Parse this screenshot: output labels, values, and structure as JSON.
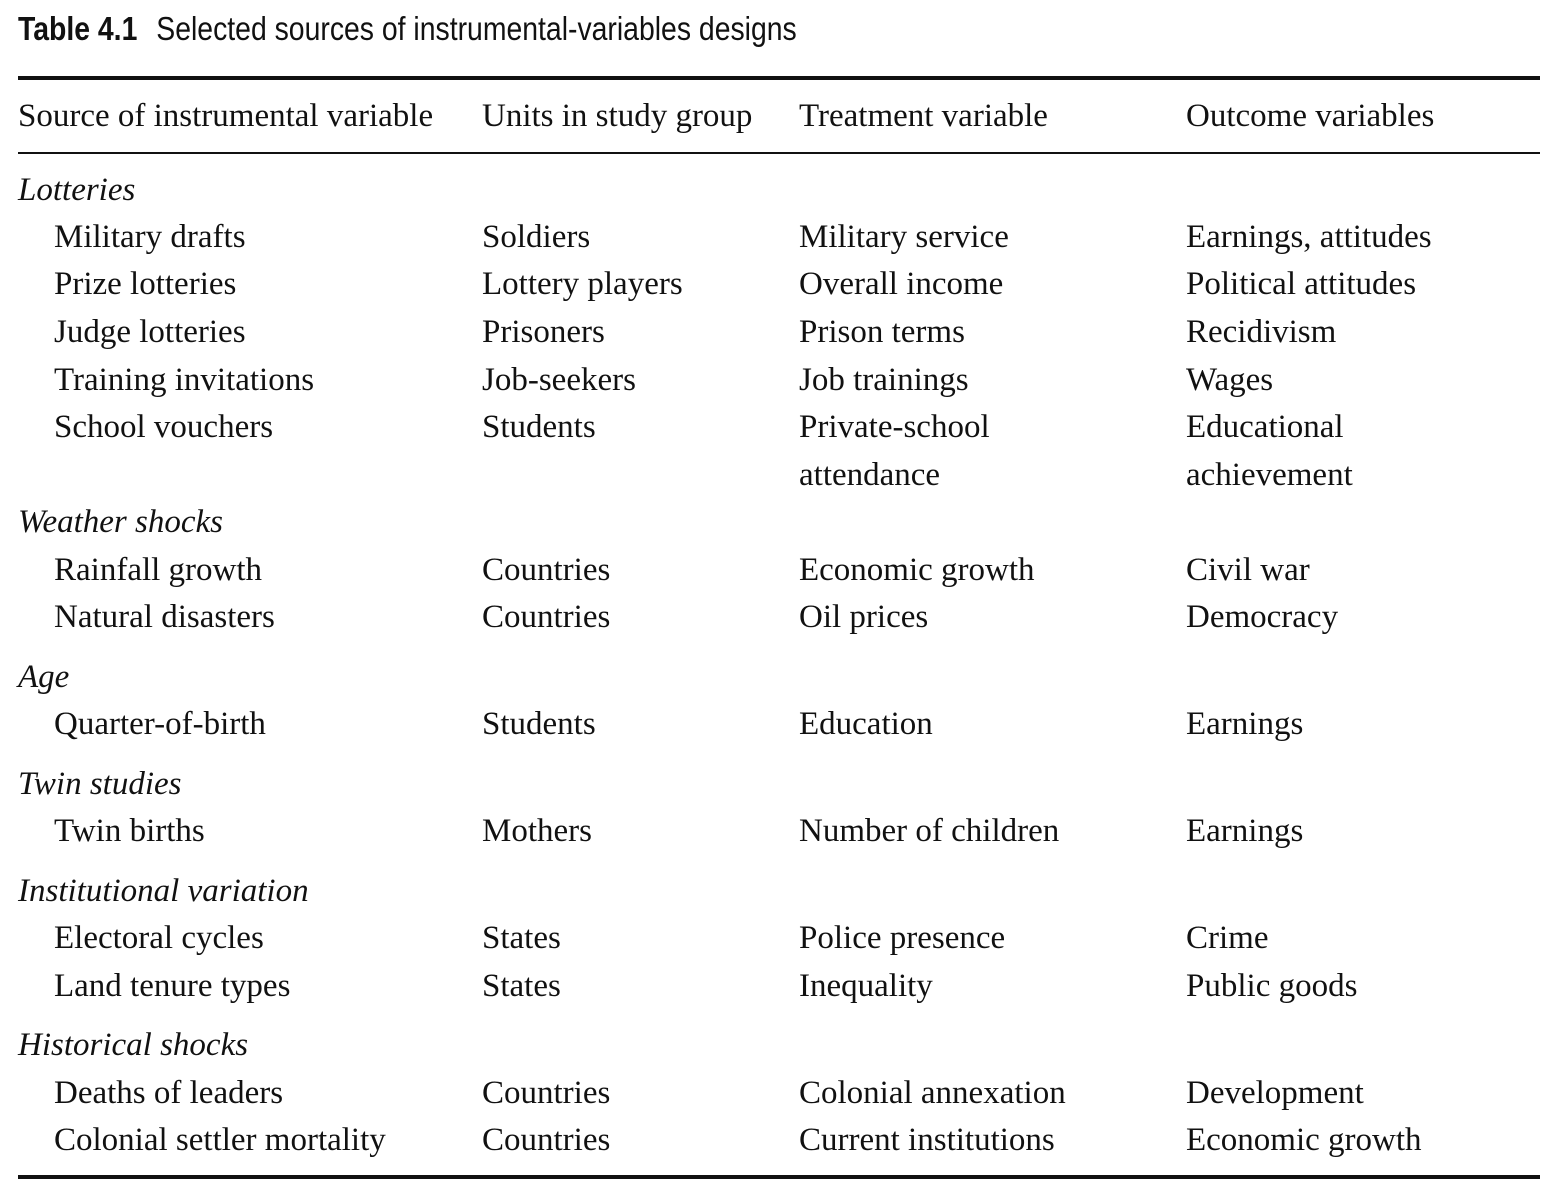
{
  "caption": {
    "label": "Table 4.1",
    "title": "Selected sources of instrumental-variables designs"
  },
  "columns": [
    "Source of instrumental variable",
    "Units in study group",
    "Treatment variable",
    "Outcome variables"
  ],
  "groups": [
    {
      "name": "Lotteries",
      "rows": [
        [
          "Military drafts",
          "Soldiers",
          "Military service",
          "Earnings, attitudes"
        ],
        [
          "Prize lotteries",
          "Lottery players",
          "Overall income",
          "Political attitudes"
        ],
        [
          "Judge lotteries",
          "Prisoners",
          "Prison terms",
          "Recidivism"
        ],
        [
          "Training invitations",
          "Job-seekers",
          "Job trainings",
          "Wages"
        ],
        [
          "School vouchers",
          "Students",
          "Private-school",
          "Educational"
        ],
        [
          "",
          "",
          "attendance",
          "achievement"
        ]
      ]
    },
    {
      "name": "Weather shocks",
      "rows": [
        [
          "Rainfall growth",
          "Countries",
          "Economic growth",
          "Civil war"
        ],
        [
          "Natural disasters",
          "Countries",
          "Oil prices",
          "Democracy"
        ]
      ]
    },
    {
      "name": "Age",
      "rows": [
        [
          "Quarter-of-birth",
          "Students",
          "Education",
          "Earnings"
        ]
      ]
    },
    {
      "name": "Twin studies",
      "rows": [
        [
          "Twin births",
          "Mothers",
          "Number of children",
          "Earnings"
        ]
      ]
    },
    {
      "name": "Institutional variation",
      "rows": [
        [
          "Electoral cycles",
          "States",
          "Police presence",
          "Crime"
        ],
        [
          "Land tenure types",
          "States",
          "Inequality",
          "Public goods"
        ]
      ]
    },
    {
      "name": "Historical shocks",
      "rows": [
        [
          "Deaths of leaders",
          "Countries",
          "Colonial annexation",
          "Development"
        ],
        [
          "Colonial settler mortality",
          "Countries",
          "Current institutions",
          "Economic growth"
        ]
      ]
    }
  ]
}
